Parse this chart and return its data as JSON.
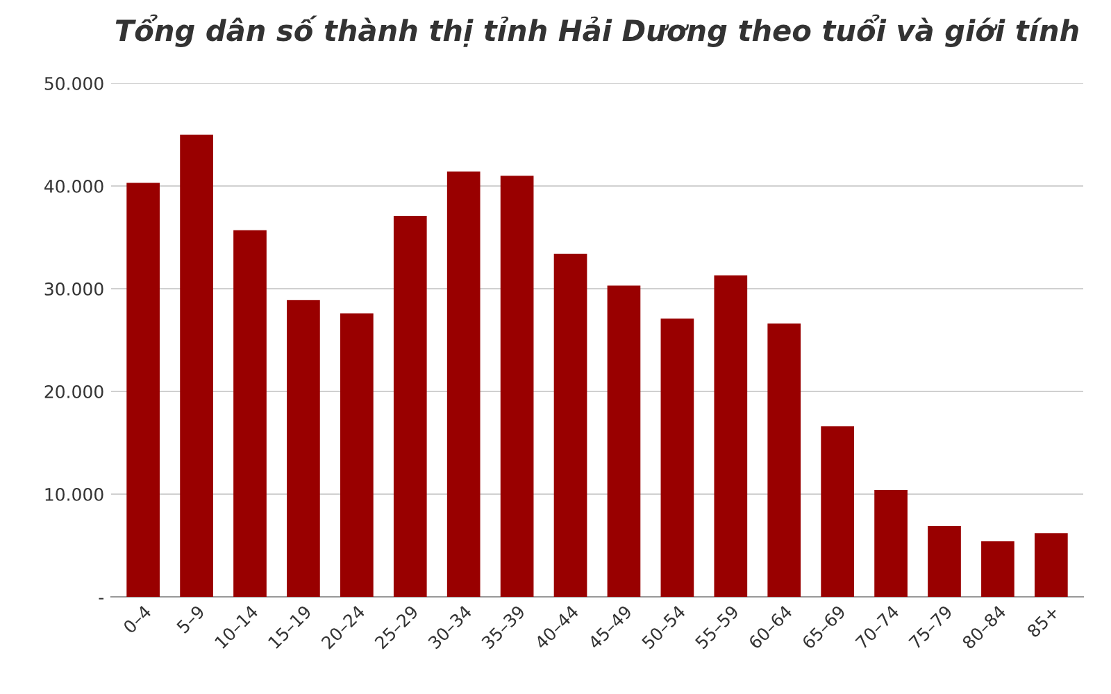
{
  "chart_data": {
    "type": "bar",
    "title": "Tổng dân số thành thị tỉnh Hải Dương theo tuổi và giới tính",
    "categories": [
      "0–4",
      "5–9",
      "10–14",
      "15–19",
      "20–24",
      "25–29",
      "30–34",
      "35–39",
      "40–44",
      "45–49",
      "50–54",
      "55–59",
      "60–64",
      "65–69",
      "70–74",
      "75–79",
      "80–84",
      "85+"
    ],
    "values": [
      40300,
      45000,
      35700,
      28900,
      27600,
      37100,
      41400,
      41000,
      33400,
      30300,
      27100,
      31300,
      26600,
      16600,
      10400,
      6900,
      5400,
      6200
    ],
    "color": "#990000",
    "ylim": [
      0,
      50000
    ],
    "yticks": [
      {
        "value": 0,
        "label": "-"
      },
      {
        "value": 10000,
        "label": "10.000"
      },
      {
        "value": 20000,
        "label": "20.000"
      },
      {
        "value": 30000,
        "label": "30.000"
      },
      {
        "value": 40000,
        "label": "40.000"
      },
      {
        "value": 50000,
        "label": "50.000"
      }
    ],
    "grid": "y",
    "legend": false
  }
}
